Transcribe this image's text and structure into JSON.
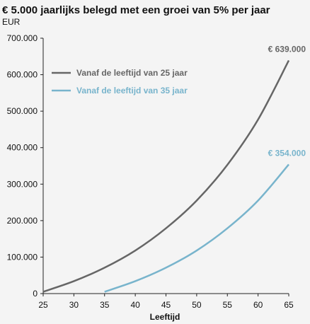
{
  "chart_data": {
    "type": "line",
    "title": "€ 5.000 jaarlijks belegd met een groei van 5% per jaar",
    "unit_label": "EUR",
    "xlabel": "Leeftijd",
    "ylabel": "",
    "xlim": [
      25,
      65
    ],
    "ylim": [
      0,
      700000
    ],
    "x_ticks": [
      25,
      30,
      35,
      40,
      45,
      50,
      55,
      60,
      65
    ],
    "x_tick_labels": [
      "25",
      "30",
      "35",
      "40",
      "45",
      "50",
      "55",
      "60",
      "65"
    ],
    "y_ticks": [
      0,
      100000,
      200000,
      300000,
      400000,
      500000,
      600000,
      700000
    ],
    "y_tick_labels": [
      "0",
      "100.000",
      "200.000",
      "300.000",
      "400.000",
      "500.000",
      "600.000",
      "700.000"
    ],
    "grid": false,
    "legend_position": "top-left",
    "series": [
      {
        "name": "Vanaf de leeftijd van 25 jaar",
        "color": "#666666",
        "end_label": "€ 639.000",
        "x": [
          25,
          30,
          35,
          40,
          45,
          50,
          55,
          60,
          65
        ],
        "y": [
          5000,
          34000,
          71000,
          118000,
          179000,
          255000,
          353000,
          477000,
          639000
        ]
      },
      {
        "name": "Vanaf de leeftijd van 35 jaar",
        "color": "#78b4cc",
        "end_label": "€ 354.000",
        "x": [
          35,
          40,
          45,
          50,
          55,
          60,
          65
        ],
        "y": [
          5000,
          34000,
          71000,
          118000,
          179000,
          255000,
          354000
        ]
      }
    ]
  }
}
